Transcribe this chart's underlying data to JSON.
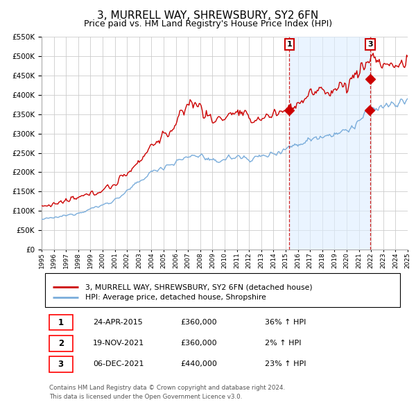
{
  "title": "3, MURRELL WAY, SHREWSBURY, SY2 6FN",
  "subtitle": "Price paid vs. HM Land Registry's House Price Index (HPI)",
  "legend_line1": "3, MURRELL WAY, SHREWSBURY, SY2 6FN (detached house)",
  "legend_line2": "HPI: Average price, detached house, Shropshire",
  "footer1": "Contains HM Land Registry data © Crown copyright and database right 2024.",
  "footer2": "This data is licensed under the Open Government Licence v3.0.",
  "transactions": [
    {
      "num": 1,
      "date": "24-APR-2015",
      "price": "£360,000",
      "change": "36% ↑ HPI",
      "year": 2015.31
    },
    {
      "num": 2,
      "date": "19-NOV-2021",
      "price": "£360,000",
      "change": "2% ↑ HPI",
      "year": 2021.88
    },
    {
      "num": 3,
      "date": "06-DEC-2021",
      "price": "£440,000",
      "change": "23% ↑ HPI",
      "year": 2021.93
    }
  ],
  "vline1_x": 2015.31,
  "vline2_x": 2021.93,
  "box_labels": [
    {
      "num": 1,
      "x": 2015.31
    },
    {
      "num": 3,
      "x": 2021.93
    }
  ],
  "marker1_x": 2015.31,
  "marker1_y": 360000,
  "marker2_x": 2021.88,
  "marker2_y": 360000,
  "marker3_x": 2021.93,
  "marker3_y": 440000,
  "red_color": "#cc0000",
  "blue_color": "#7aaddb",
  "shade_color": "#ddeeff",
  "grid_color": "#cccccc",
  "plot_bg": "#ffffff",
  "ylim": [
    0,
    550000
  ],
  "xlim_start": 1995,
  "xlim_end": 2025,
  "title_fontsize": 11,
  "subtitle_fontsize": 9
}
